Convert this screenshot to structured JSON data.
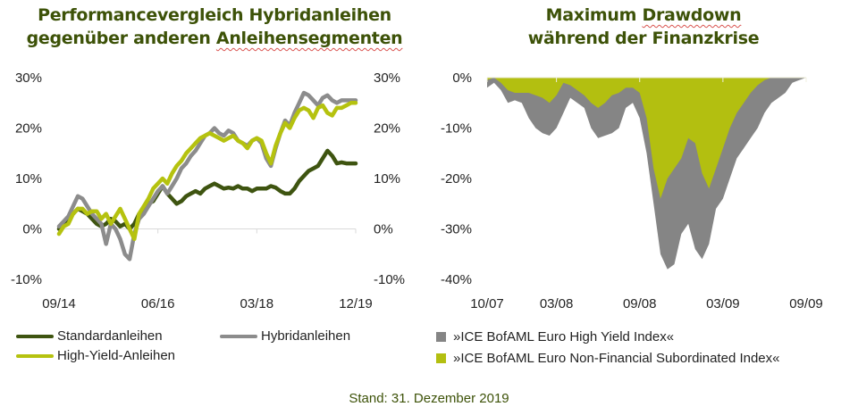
{
  "colors": {
    "title": "#3d5208",
    "standard": "#3e5410",
    "hybrid": "#8c8c8c",
    "highyield": "#b5c20f",
    "drawdown_hy": "#858585",
    "drawdown_nfs": "#b3bf10"
  },
  "footer": "Stand: 31. Dezember 2019",
  "chart_data": [
    {
      "type": "line",
      "title_line1": "Performancevergleich Hybridanleihen",
      "title_line2_a": "gegenüber anderen ",
      "title_line2_b": "Anleihensegmenten",
      "xlabel": "",
      "ylabel": "",
      "ylim": [
        -10,
        30
      ],
      "y_ticks_left": [
        "30%",
        "20%",
        "10%",
        "0%",
        "-10%"
      ],
      "y_ticks_right": [
        "30%",
        "20%",
        "10%",
        "0%",
        "-10%"
      ],
      "y_tick_values": [
        30,
        20,
        10,
        0,
        -10
      ],
      "x_tick_labels": [
        "09/14",
        "06/16",
        "03/18",
        "12/19"
      ],
      "x_tick_positions": [
        0,
        21,
        42,
        63
      ],
      "x_range": [
        0,
        63
      ],
      "grid": false,
      "legend_position": "bottom",
      "series": [
        {
          "name": "Standardanleihen",
          "key": "standard",
          "x": [
            0,
            1,
            2,
            3,
            4,
            5,
            6,
            7,
            8,
            9,
            10,
            11,
            12,
            13,
            14,
            15,
            16,
            17,
            18,
            19,
            20,
            21,
            22,
            23,
            24,
            25,
            26,
            27,
            28,
            29,
            30,
            31,
            32,
            33,
            34,
            35,
            36,
            37,
            38,
            39,
            40,
            41,
            42,
            43,
            44,
            45,
            46,
            47,
            48,
            49,
            50,
            51,
            52,
            53,
            54,
            55,
            56,
            57,
            58,
            59,
            60,
            61,
            62,
            63
          ],
          "values": [
            0,
            1,
            2,
            3,
            4,
            3.5,
            3,
            2,
            1,
            0.5,
            1,
            2,
            1.5,
            0.5,
            1,
            0,
            1,
            3,
            4,
            5,
            5.5,
            7,
            8.5,
            7,
            6,
            5,
            5.5,
            6.5,
            7,
            7.5,
            7,
            8,
            8.5,
            9,
            8.5,
            8,
            8.2,
            8,
            8.5,
            8,
            8,
            7.5,
            8,
            8,
            8,
            8.5,
            8.2,
            7.5,
            7,
            7,
            8,
            9.5,
            10.5,
            11.5,
            12,
            12.5,
            14,
            15.5,
            14.5,
            13,
            13.2,
            13,
            13,
            13
          ]
        },
        {
          "name": "Hybridanleihen",
          "key": "hybrid",
          "x": [
            0,
            1,
            2,
            3,
            4,
            5,
            6,
            7,
            8,
            9,
            10,
            11,
            12,
            13,
            14,
            15,
            16,
            17,
            18,
            19,
            20,
            21,
            22,
            23,
            24,
            25,
            26,
            27,
            28,
            29,
            30,
            31,
            32,
            33,
            34,
            35,
            36,
            37,
            38,
            39,
            40,
            41,
            42,
            43,
            44,
            45,
            46,
            47,
            48,
            49,
            50,
            51,
            52,
            53,
            54,
            55,
            56,
            57,
            58,
            59,
            60,
            61,
            62,
            63
          ],
          "values": [
            0.5,
            1.5,
            2.5,
            4.5,
            6.5,
            6,
            4.5,
            3,
            2,
            1,
            -3,
            1,
            0,
            -2,
            -5,
            -6,
            -1,
            2,
            3,
            4.5,
            6,
            7.5,
            8.5,
            7,
            8.5,
            10,
            12,
            13,
            14.5,
            15.5,
            17,
            18.5,
            19,
            20,
            19,
            18.5,
            19.5,
            19,
            17.5,
            17,
            16.5,
            17.5,
            18,
            17,
            14,
            12.5,
            16,
            19,
            21.5,
            20.5,
            23,
            25,
            27,
            26.5,
            25.5,
            24.5,
            26,
            26.5,
            25.5,
            25,
            25.5,
            25.5,
            25.5,
            25.5
          ]
        },
        {
          "name": "High-Yield-Anleihen",
          "key": "highyield",
          "x": [
            0,
            1,
            2,
            3,
            4,
            5,
            6,
            7,
            8,
            9,
            10,
            11,
            12,
            13,
            14,
            15,
            16,
            17,
            18,
            19,
            20,
            21,
            22,
            23,
            24,
            25,
            26,
            27,
            28,
            29,
            30,
            31,
            32,
            33,
            34,
            35,
            36,
            37,
            38,
            39,
            40,
            41,
            42,
            43,
            44,
            45,
            46,
            47,
            48,
            49,
            50,
            51,
            52,
            53,
            54,
            55,
            56,
            57,
            58,
            59,
            60,
            61,
            62,
            63
          ],
          "values": [
            -1,
            0.5,
            1,
            3,
            4,
            4,
            3,
            3.5,
            3.5,
            2,
            3,
            1,
            2.5,
            4,
            2,
            0,
            -2,
            3,
            4.5,
            6,
            8,
            9,
            10,
            9,
            11,
            12.5,
            13.5,
            15,
            16,
            17,
            18,
            18.5,
            19,
            18.5,
            18,
            17.5,
            18,
            18.5,
            17.5,
            17,
            16,
            17.5,
            18,
            17.5,
            15,
            13,
            16.5,
            19,
            21,
            20,
            22,
            23.5,
            24,
            23.5,
            22,
            24,
            24.5,
            23,
            22.5,
            24,
            24,
            24.5,
            25,
            25
          ]
        }
      ]
    },
    {
      "type": "area",
      "title_line1_a": "Maximum ",
      "title_line1_b": "Drawdown",
      "title_line2": "während der Finanzkrise",
      "xlabel": "",
      "ylabel": "",
      "ylim": [
        -40,
        0
      ],
      "y_ticks": [
        "0%",
        "-10%",
        "-20%",
        "-30%",
        "-40%"
      ],
      "y_tick_values": [
        0,
        -10,
        -20,
        -30,
        -40
      ],
      "x_tick_labels": [
        "10/07",
        "03/08",
        "09/08",
        "03/09",
        "09/09"
      ],
      "x_tick_positions": [
        0,
        5,
        11,
        17,
        23
      ],
      "x_range": [
        0,
        23
      ],
      "grid": false,
      "legend_position": "bottom",
      "series": [
        {
          "name": "»ICE BofAML Euro High Yield Index«",
          "key": "drawdown_hy",
          "x": [
            0,
            0.5,
            1,
            1.5,
            2,
            2.5,
            3,
            3.5,
            4,
            4.5,
            5,
            5.5,
            6,
            6.5,
            7,
            7.5,
            8,
            8.5,
            9,
            9.5,
            10,
            10.5,
            11,
            11.5,
            12,
            12.5,
            13,
            13.5,
            14,
            14.5,
            15,
            15.5,
            16,
            16.5,
            17,
            17.5,
            18,
            18.5,
            19,
            19.5,
            20,
            20.5,
            21,
            21.5,
            22,
            22.5,
            23
          ],
          "values": [
            -2,
            -1,
            -2.5,
            -5,
            -4.5,
            -5,
            -8,
            -10,
            -11,
            -11.5,
            -10,
            -7,
            -4,
            -5,
            -6,
            -10,
            -12,
            -11.5,
            -11,
            -10,
            -6,
            -5,
            -8,
            -15,
            -25,
            -35,
            -38,
            -37,
            -31,
            -29,
            -34,
            -36,
            -33,
            -26,
            -24,
            -20,
            -16,
            -14,
            -12,
            -10,
            -7,
            -5,
            -4,
            -3,
            -1,
            -0.5,
            0
          ]
        },
        {
          "name": "»ICE BofAML Euro Non-Financial Subordinated Index«",
          "key": "drawdown_nfs",
          "x": [
            0,
            0.5,
            1,
            1.5,
            2,
            2.5,
            3,
            3.5,
            4,
            4.5,
            5,
            5.5,
            6,
            6.5,
            7,
            7.5,
            8,
            8.5,
            9,
            9.5,
            10,
            10.5,
            11,
            11.5,
            12,
            12.5,
            13,
            13.5,
            14,
            14.5,
            15,
            15.5,
            16,
            16.5,
            17,
            17.5,
            18,
            18.5,
            19,
            19.5,
            20,
            20.5,
            21,
            21.5,
            22,
            22.5,
            23
          ],
          "values": [
            -0.5,
            0,
            -1,
            -2.5,
            -3,
            -3,
            -3,
            -3.5,
            -4,
            -5,
            -3.5,
            -1,
            -1.5,
            -2.5,
            -3.5,
            -5,
            -6,
            -5,
            -3.5,
            -3,
            -2,
            -2,
            -3,
            -8,
            -18,
            -24,
            -20,
            -18,
            -16,
            -12,
            -13,
            -19,
            -22,
            -18,
            -14,
            -10,
            -7,
            -5,
            -3,
            -1.5,
            -0.5,
            0,
            0,
            0,
            0,
            0,
            0
          ]
        }
      ]
    }
  ]
}
